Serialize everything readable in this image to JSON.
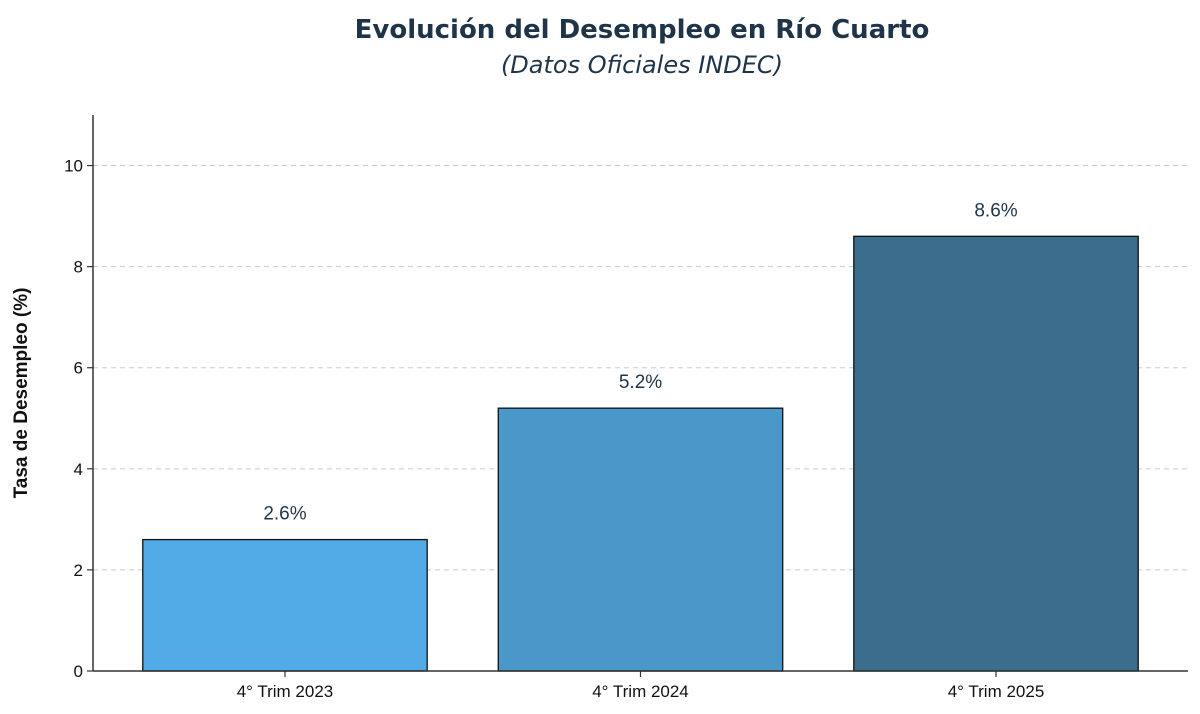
{
  "chart_data": {
    "type": "bar",
    "title": "Evolución del Desempleo en Río Cuarto",
    "subtitle": "(Datos Oficiales INDEC)",
    "xlabel": "",
    "ylabel": "Tasa de Desempleo (%)",
    "categories": [
      "4° Trim 2023",
      "4° Trim 2024",
      "4° Trim 2025"
    ],
    "values": [
      2.6,
      5.2,
      8.6
    ],
    "data_labels": [
      "2.6%",
      "5.2%",
      "8.6%"
    ],
    "colors": [
      "#52abe6",
      "#4a97c9",
      "#3b6e8d"
    ],
    "ylim": [
      0,
      11
    ],
    "yticks": [
      0,
      2,
      4,
      6,
      8,
      10
    ],
    "ytick_labels": [
      "0",
      "2",
      "4",
      "6",
      "8",
      "10"
    ],
    "grid": "y-dashed"
  }
}
